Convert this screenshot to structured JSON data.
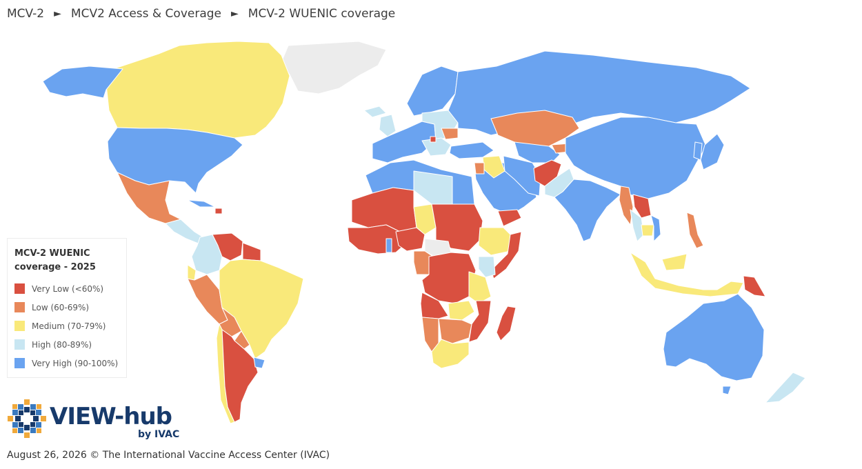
{
  "breadcrumb": {
    "items": [
      "MCV-2",
      "MCV2 Access & Coverage",
      "MCV-2 WUENIC coverage"
    ],
    "separator": "►"
  },
  "legend": {
    "title_line1": "MCV-2 WUENIC",
    "title_line2": "coverage - 2025",
    "items": [
      {
        "label": "Very Low (<60%)",
        "color": "#d95040"
      },
      {
        "label": "Low (60-69%)",
        "color": "#e8885a"
      },
      {
        "label": "Medium (70-79%)",
        "color": "#f9e97a"
      },
      {
        "label": "High (80-89%)",
        "color": "#c8e6f2"
      },
      {
        "label": "Very High (90-100%)",
        "color": "#6aa3f0"
      }
    ],
    "no_data_color": "#ececec"
  },
  "logo": {
    "name": "VIEW-hub",
    "byline": "by IVAC",
    "icon": "view-hub-mosaic-logo"
  },
  "footer": {
    "text": "August 26, 2026 © The International Vaccine Access Center (IVAC)"
  }
}
